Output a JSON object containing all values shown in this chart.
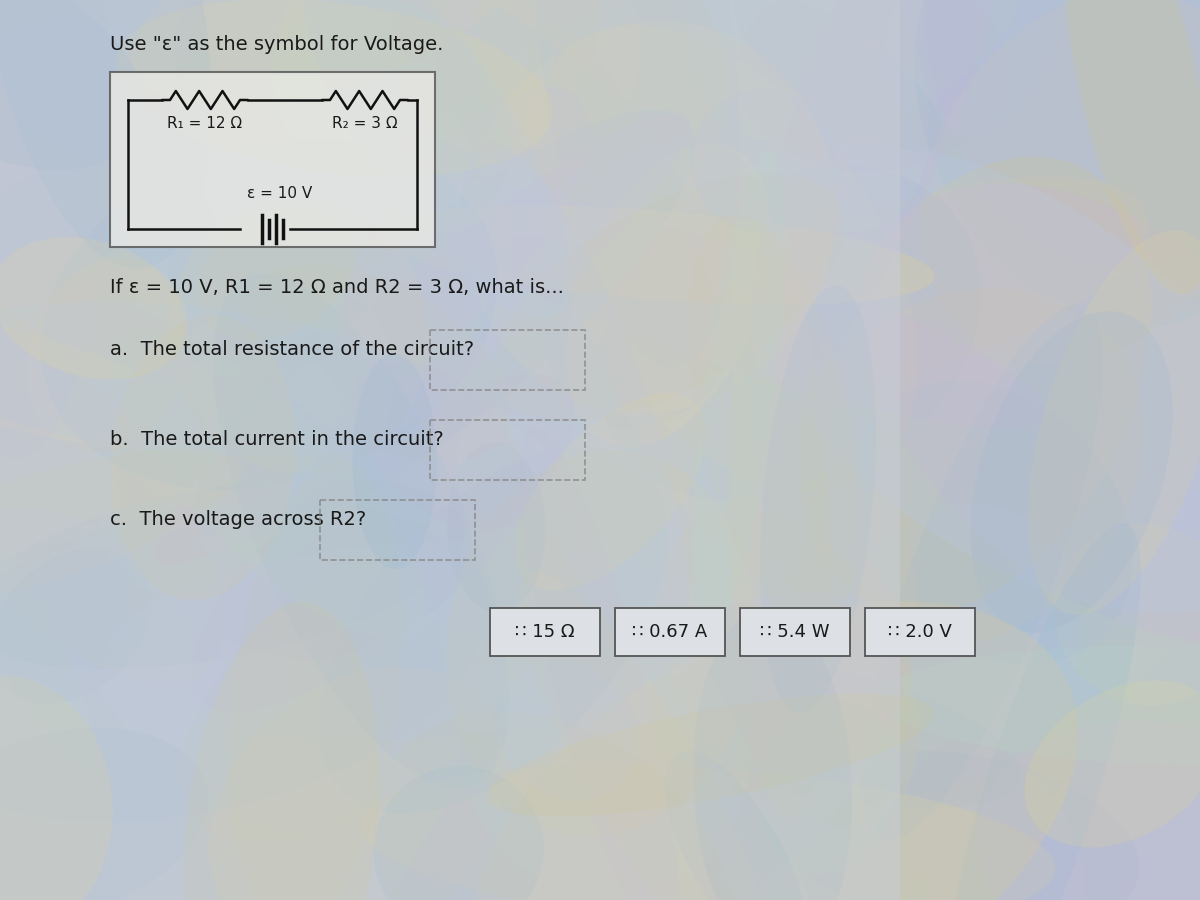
{
  "title_text": "Use \"ε\" as the symbol for Voltage.",
  "circuit_label_r1": "R₁ = 12 Ω",
  "circuit_label_r2": "R₂ = 3 Ω",
  "circuit_label_e": "ε = 10 V",
  "question_intro": "If ε = 10 V, R1 = 12 Ω and R2 = 3 Ω, what is...",
  "question_a": "a.  The total resistance of the circuit?",
  "question_b": "b.  The total current in the circuit?",
  "question_c": "c.  The voltage across R2?",
  "answer_boxes": [
    "∷ 15 Ω",
    "∷ 0.67 A",
    "∷ 5.4 W",
    "∷ 2.0 V"
  ],
  "bg_swirl_colors": [
    "#b8c8e8",
    "#d4c890",
    "#e8d890",
    "#c8b8d8",
    "#90b8d8",
    "#b8d8c8",
    "#d8c8a0",
    "#a0b8d0"
  ],
  "panel_left_color": "#c8cdd4",
  "panel_right_color": "#b0bcc8",
  "circuit_box_color": "#e8e8e4",
  "circuit_border_color": "#555555",
  "text_color": "#1a1a1a",
  "dashed_box_color": "#888888",
  "answer_box_border": "#555555",
  "answer_box_bg": "#dde0e4",
  "wire_color": "#111111"
}
